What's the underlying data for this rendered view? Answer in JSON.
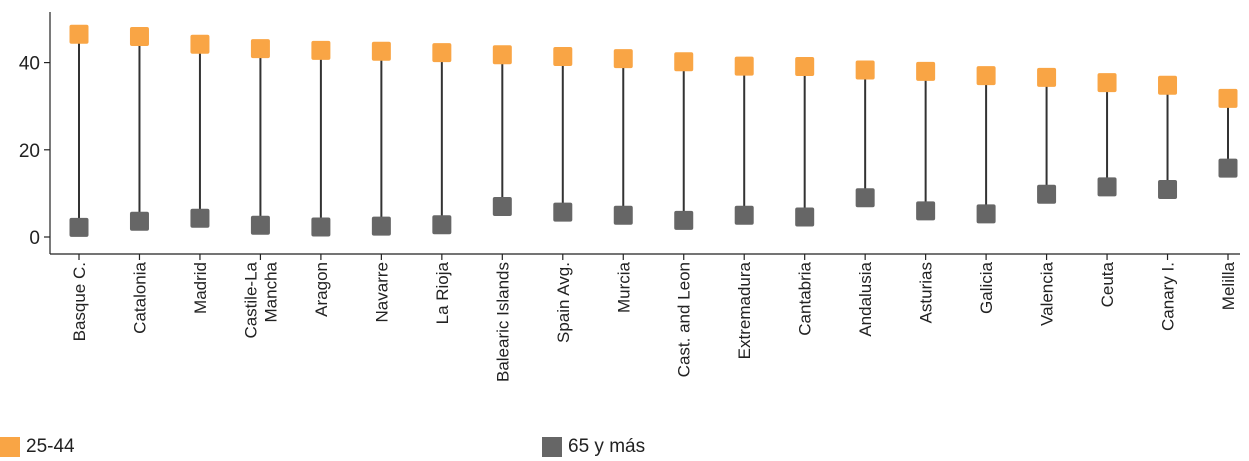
{
  "chart_data": {
    "type": "dumbbell",
    "categories": [
      [
        "Basque C."
      ],
      [
        "Catalonia"
      ],
      [
        "Madrid"
      ],
      [
        "Castile-La",
        "Mancha"
      ],
      [
        "Aragon"
      ],
      [
        "Navarre"
      ],
      [
        "La Rioja"
      ],
      [
        "Balearic Islands"
      ],
      [
        "Spain Avg."
      ],
      [
        "Murcia"
      ],
      [
        "Cast. and Leon"
      ],
      [
        "Extremadura"
      ],
      [
        "Cantabria"
      ],
      [
        "Andalusia"
      ],
      [
        "Asturias"
      ],
      [
        "Galicia"
      ],
      [
        "Valencia"
      ],
      [
        "Ceuta"
      ],
      [
        "Canary I."
      ],
      [
        "Melilla"
      ]
    ],
    "series": [
      {
        "name": "25-44",
        "color": "#F9A545",
        "values": [
          46.5,
          46.0,
          44.2,
          43.2,
          42.8,
          42.6,
          42.3,
          41.8,
          41.4,
          40.9,
          40.2,
          39.2,
          39.1,
          38.3,
          38.0,
          37.0,
          36.6,
          35.4,
          34.8,
          31.8
        ]
      },
      {
        "name": "65 y más",
        "color": "#666666",
        "values": [
          2.2,
          3.6,
          4.3,
          2.7,
          2.3,
          2.5,
          2.8,
          7.0,
          5.7,
          5.0,
          3.8,
          5.0,
          4.6,
          9.0,
          6.0,
          5.3,
          9.8,
          11.5,
          10.9,
          15.8
        ]
      }
    ],
    "yticks": [
      0,
      20,
      40
    ],
    "ylim": [
      -5,
      50
    ],
    "grid": false,
    "legend_position": "bottom"
  }
}
